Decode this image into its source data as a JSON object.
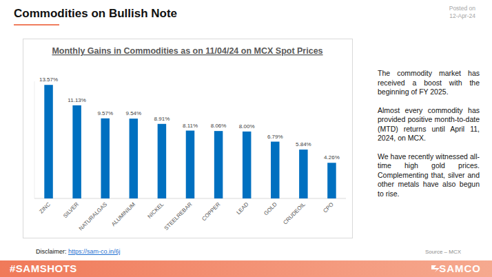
{
  "header": {
    "title": "Commodities on Bullish Note",
    "posted_label": "Posted on",
    "posted_date": "12-Apr-24"
  },
  "chart_data": {
    "type": "bar",
    "title": "Monthly Gains in Commodities as on 11/04/24 on MCX Spot Prices",
    "categories": [
      "ZINC",
      "SILVER",
      "NATURALGAS",
      "ALUMINIUM",
      "NICKEL",
      "STEELREBAR",
      "COPPER",
      "LEAD",
      "GOLD",
      "CRUDEOIL",
      "CPO"
    ],
    "values": [
      13.57,
      11.13,
      9.57,
      9.54,
      8.91,
      8.11,
      8.06,
      8.0,
      6.79,
      5.84,
      4.26
    ],
    "value_labels": [
      "13.57%",
      "11.13%",
      "9.57%",
      "9.54%",
      "8.91%",
      "8.11%",
      "8.06%",
      "8.00%",
      "6.79%",
      "5.84%",
      "4.26%"
    ],
    "color": "#0070c0",
    "ylim": [
      0,
      14
    ],
    "grid": false,
    "data_labels": true,
    "tick_labels": "x"
  },
  "notes": [
    "The commodity market has received a boost with the beginning of FY 2025.",
    "Almost every commodity has provided positive month-to-date (MTD) returns until April 11, 2024, on MCX.",
    "We have recently witnessed all-time high gold prices. Complementing that, silver and other metals have also begun to rise."
  ],
  "disclaimer": {
    "label": "Disclaimer:",
    "link": "https://sam-co.in/6j"
  },
  "source": "Source – MCX",
  "footer": {
    "hashtag": "#SAMSHOTS",
    "brand": "SAMCO"
  }
}
